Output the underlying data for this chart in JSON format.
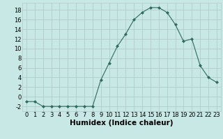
{
  "x": [
    0,
    1,
    2,
    3,
    4,
    5,
    6,
    7,
    8,
    9,
    10,
    11,
    12,
    13,
    14,
    15,
    16,
    17,
    18,
    19,
    20,
    21,
    22,
    23
  ],
  "y": [
    -1,
    -1,
    -2,
    -2,
    -2,
    -2,
    -2,
    -2,
    -2,
    3.5,
    7,
    10.5,
    13,
    16,
    17.5,
    18.5,
    18.5,
    17.5,
    15,
    11.5,
    12,
    6.5,
    4,
    3
  ],
  "line_color": "#2e6b5e",
  "marker": "D",
  "marker_size": 2,
  "bg_color": "#c8e8e5",
  "grid_color": "#b0cccb",
  "xlabel": "Humidex (Indice chaleur)",
  "xlabel_fontsize": 7.5,
  "tick_fontsize": 6,
  "xlim": [
    -0.5,
    23.5
  ],
  "ylim": [
    -3,
    19.5
  ],
  "yticks": [
    -2,
    0,
    2,
    4,
    6,
    8,
    10,
    12,
    14,
    16,
    18
  ],
  "xticks": [
    0,
    1,
    2,
    3,
    4,
    5,
    6,
    7,
    8,
    9,
    10,
    11,
    12,
    13,
    14,
    15,
    16,
    17,
    18,
    19,
    20,
    21,
    22,
    23
  ]
}
